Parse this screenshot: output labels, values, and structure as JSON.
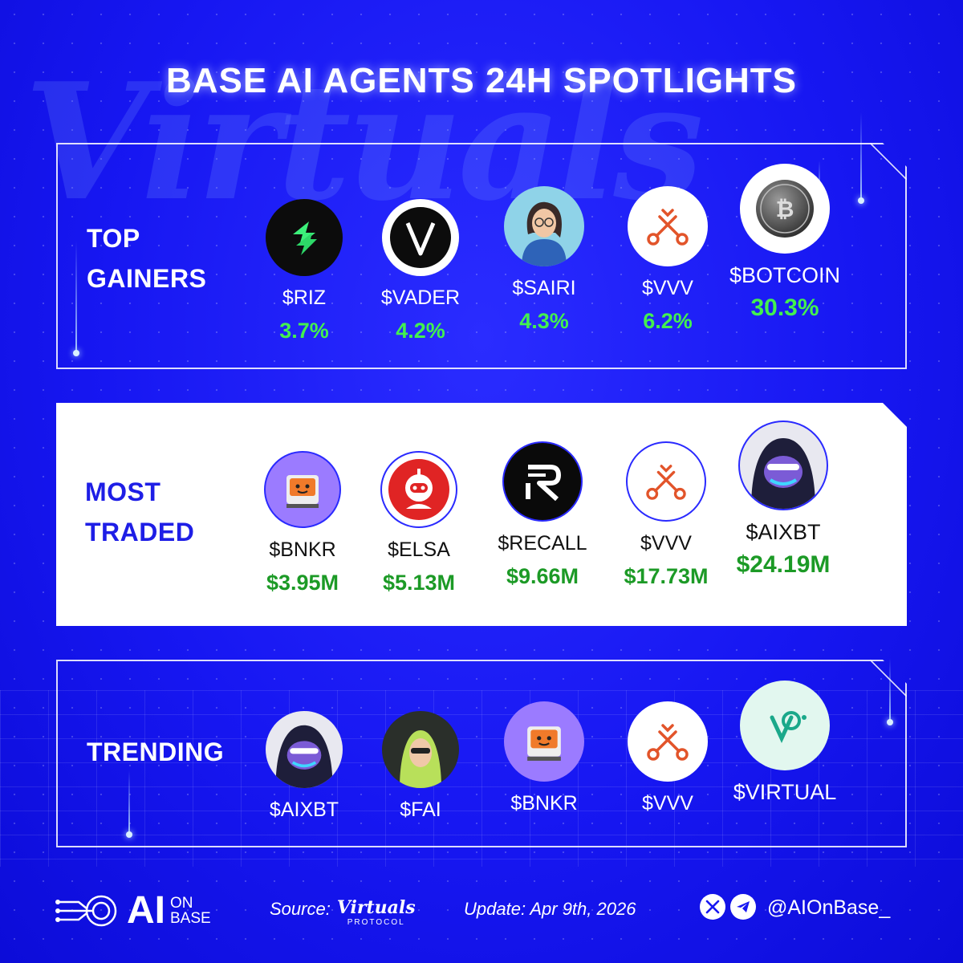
{
  "title": "BASE AI AGENTS 24H SPOTLIGHTS",
  "watermark": "Virtuals",
  "colors": {
    "background": "#1717f2",
    "gain_green": "#43f04f",
    "traded_green": "#1c9a26",
    "label_blue": "#1e1ee6"
  },
  "sections": [
    {
      "label_lines": [
        "TOP",
        "GAINERS"
      ],
      "items": [
        {
          "ticker": "$RIZ",
          "value": "3.7%",
          "icon": "riz-logo-icon"
        },
        {
          "ticker": "$VADER",
          "value": "4.2%",
          "icon": "vader-logo-icon"
        },
        {
          "ticker": "$SAIRI",
          "value": "4.3%",
          "icon": "sairi-avatar-icon"
        },
        {
          "ticker": "$VVV",
          "value": "6.2%",
          "icon": "vvv-keys-icon"
        },
        {
          "ticker": "$BOTCOIN",
          "value": "30.3%",
          "icon": "botcoin-coin-icon"
        }
      ]
    },
    {
      "label_lines": [
        "MOST",
        "TRADED"
      ],
      "items": [
        {
          "ticker": "$BNKR",
          "value": "$3.95M",
          "icon": "bnkr-robot-icon"
        },
        {
          "ticker": "$ELSA",
          "value": "$5.13M",
          "icon": "elsa-robot-icon"
        },
        {
          "ticker": "$RECALL",
          "value": "$9.66M",
          "icon": "recall-logo-icon"
        },
        {
          "ticker": "$VVV",
          "value": "$17.73M",
          "icon": "vvv-keys-icon"
        },
        {
          "ticker": "$AIXBT",
          "value": "$24.19M",
          "icon": "aixbt-avatar-icon"
        }
      ]
    },
    {
      "label_lines": [
        "TRENDING"
      ],
      "items": [
        {
          "ticker": "$AIXBT",
          "icon": "aixbt-avatar-icon"
        },
        {
          "ticker": "$FAI",
          "icon": "fai-avatar-icon"
        },
        {
          "ticker": "$BNKR",
          "icon": "bnkr-robot-icon"
        },
        {
          "ticker": "$VVV",
          "icon": "vvv-keys-icon"
        },
        {
          "ticker": "$VIRTUAL",
          "icon": "virtual-logo-icon"
        }
      ]
    }
  ],
  "footer": {
    "brand_ai": "AI",
    "brand_on": "ON",
    "brand_base": "BASE",
    "source_label": "Source:",
    "source_script": "Virtuals",
    "source_protocol": "PROTOCOL",
    "update": "Update: Apr 9th, 2026",
    "handle": "@AIOnBase_",
    "social_icons": [
      "x-icon",
      "telegram-icon"
    ]
  }
}
